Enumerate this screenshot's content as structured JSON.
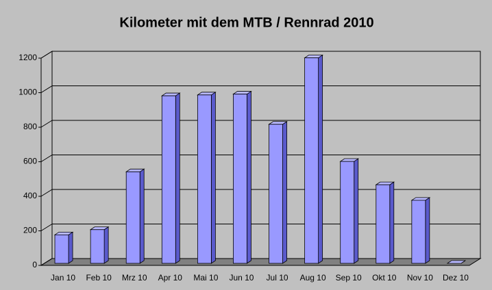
{
  "chart_data": {
    "type": "bar3d",
    "title": "Kilometer mit dem MTB / Rennrad 2010",
    "categories": [
      "Jan 10",
      "Feb 10",
      "Mrz 10",
      "Apr 10",
      "Mai 10",
      "Jun 10",
      "Jul 10",
      "Aug 10",
      "Sep 10",
      "Okt 10",
      "Nov 10",
      "Dez 10"
    ],
    "values": [
      165,
      195,
      530,
      970,
      975,
      980,
      805,
      1190,
      590,
      455,
      365,
      0
    ],
    "color": "#9999ff",
    "ylim": [
      0,
      1200
    ],
    "yticks": [
      0,
      200,
      400,
      600,
      800,
      1000,
      1200
    ],
    "grid": true
  }
}
